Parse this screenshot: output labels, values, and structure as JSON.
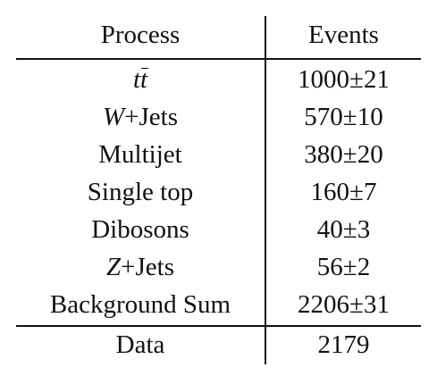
{
  "table": {
    "headers": {
      "process": "Process",
      "events": "Events"
    },
    "rows": [
      {
        "process_main": "t",
        "process_bar": "t",
        "events": "1000±21"
      },
      {
        "process_italic": "W",
        "process_suffix": "+Jets",
        "events": "570±10"
      },
      {
        "process": "Multijet",
        "events": "380±20"
      },
      {
        "process": "Single top",
        "events": "160±7"
      },
      {
        "process": "Dibosons",
        "events": "40±3"
      },
      {
        "process_italic": "Z",
        "process_suffix": "+Jets",
        "events": "56±2"
      },
      {
        "process": "Background Sum",
        "events": "2206±31"
      }
    ],
    "data_row": {
      "process": "Data",
      "events": "2179"
    }
  }
}
